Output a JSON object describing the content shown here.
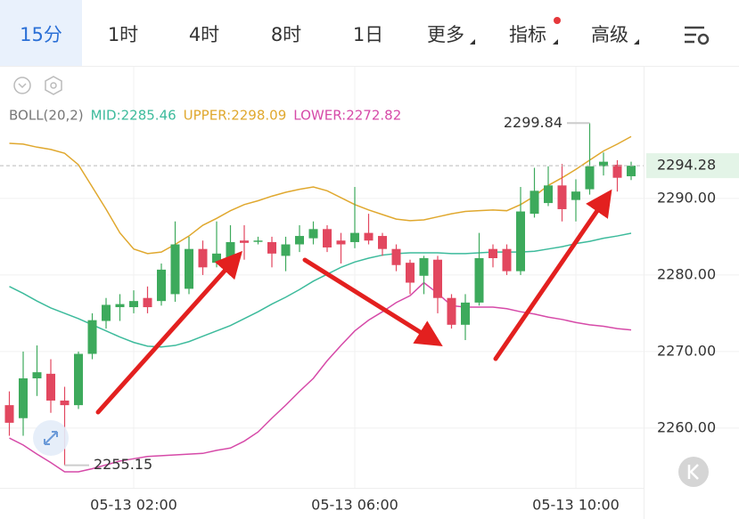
{
  "toolbar": {
    "tabs": [
      "15分",
      "1时",
      "4时",
      "8时",
      "1日",
      "更多",
      "指标",
      "高级"
    ]
  },
  "chart_data": {
    "type": "candlestick",
    "indicator": "BOLL(20,2)",
    "categories": [
      null,
      null,
      null,
      null,
      null,
      null,
      null,
      null,
      null,
      "05-13 02:00",
      null,
      null,
      null,
      null,
      null,
      null,
      null,
      null,
      null,
      null,
      null,
      null,
      null,
      null,
      null,
      "05-13 06:00",
      null,
      null,
      null,
      null,
      null,
      null,
      null,
      null,
      null,
      null,
      null,
      null,
      null,
      null,
      null,
      "05-13 10:00",
      null,
      null,
      null,
      null
    ],
    "open": [
      2263.0,
      2261.3,
      2266.5,
      2267.1,
      2263.6,
      2263.0,
      2269.7,
      2274.0,
      2275.8,
      2275.8,
      2277.0,
      2276.6,
      2277.5,
      2278.2,
      2283.4,
      2281.6,
      2282.0,
      2284.5,
      2284.4,
      2284.3,
      2282.5,
      2284.0,
      2284.8,
      2286.0,
      2284.5,
      2284.3,
      2285.5,
      2285.1,
      2283.4,
      2281.6,
      2279.9,
      2282.0,
      2277.0,
      2273.5,
      2276.4,
      2283.4,
      2283.4,
      2280.5,
      2288.0,
      2289.4,
      2291.7,
      2289.8,
      2291.2,
      2294.2,
      2294.4,
      2292.9
    ],
    "high": [
      2264.8,
      2270.0,
      2270.8,
      2269.0,
      2265.4,
      2270.0,
      2275.0,
      2277.0,
      2277.5,
      2278.0,
      2278.5,
      2281.5,
      2287.0,
      2285.0,
      2284.5,
      2287.0,
      2286.5,
      2286.5,
      2285.0,
      2285.0,
      2285.0,
      2286.5,
      2287.0,
      2286.5,
      2285.5,
      2291.5,
      2288.0,
      2285.5,
      2284.0,
      2282.0,
      2282.5,
      2282.5,
      2277.5,
      2277.5,
      2285.5,
      2284.0,
      2284.0,
      2291.5,
      2294.0,
      2294.2,
      2294.5,
      2292.5,
      2299.84,
      2296.0,
      2295.0,
      2294.8
    ],
    "low": [
      2259.0,
      2259.0,
      2264.2,
      2262.0,
      2255.15,
      2262.5,
      2269.0,
      2273.0,
      2274.0,
      2275.0,
      2275.0,
      2276.0,
      2276.5,
      2277.5,
      2280.0,
      2281.0,
      2281.0,
      2282.0,
      2284.0,
      2281.0,
      2280.5,
      2283.0,
      2284.0,
      2283.0,
      2281.5,
      2283.5,
      2284.0,
      2282.5,
      2280.5,
      2277.5,
      2277.5,
      2275.0,
      2273.0,
      2271.5,
      2276.0,
      2281.0,
      2280.0,
      2280.0,
      2287.5,
      2289.0,
      2287.0,
      2287.0,
      2290.5,
      2293.0,
      2290.9,
      2292.4
    ],
    "close": [
      2260.7,
      2266.5,
      2267.3,
      2263.6,
      2263.0,
      2269.7,
      2274.1,
      2276.1,
      2276.2,
      2276.6,
      2275.8,
      2280.7,
      2284.0,
      2283.4,
      2281.0,
      2282.8,
      2284.3,
      2284.2,
      2284.5,
      2282.8,
      2284.0,
      2285.1,
      2286.0,
      2283.6,
      2284.0,
      2285.5,
      2284.5,
      2283.4,
      2281.3,
      2279.0,
      2282.2,
      2277.0,
      2273.5,
      2276.4,
      2282.2,
      2282.2,
      2280.5,
      2288.3,
      2291.0,
      2291.7,
      2288.6,
      2290.9,
      2294.2,
      2294.8,
      2292.7,
      2294.28
    ],
    "up_color": "#3daa5c",
    "down_color": "#e2475f",
    "series": [
      {
        "name": "MID:2285.46",
        "color": "#3dbb9c",
        "values": [
          2278.5,
          2277.6,
          2276.6,
          2275.7,
          2275.0,
          2274.3,
          2273.5,
          2272.7,
          2271.9,
          2271.2,
          2270.7,
          2270.6,
          2270.8,
          2271.3,
          2272.0,
          2272.7,
          2273.4,
          2274.3,
          2275.2,
          2276.2,
          2277.1,
          2278.1,
          2279.2,
          2280.1,
          2281.0,
          2281.7,
          2282.2,
          2282.6,
          2282.8,
          2282.9,
          2282.9,
          2282.9,
          2282.8,
          2282.8,
          2282.9,
          2283.0,
          2283.0,
          2283.0,
          2283.1,
          2283.4,
          2283.7,
          2284.1,
          2284.4,
          2284.8,
          2285.1,
          2285.46
        ]
      },
      {
        "name": "UPPER:2298.09",
        "color": "#e0a82e",
        "values": [
          2297.2,
          2297.1,
          2296.7,
          2296.4,
          2295.9,
          2294.4,
          2291.5,
          2288.6,
          2285.5,
          2283.4,
          2282.8,
          2283.0,
          2284.0,
          2285.1,
          2286.5,
          2287.4,
          2288.4,
          2289.2,
          2289.7,
          2290.3,
          2290.8,
          2291.2,
          2291.5,
          2291.0,
          2290.1,
          2289.2,
          2288.5,
          2287.9,
          2287.3,
          2287.1,
          2287.2,
          2287.6,
          2288.0,
          2288.3,
          2288.4,
          2288.5,
          2288.4,
          2289.2,
          2290.3,
          2291.7,
          2292.7,
          2293.8,
          2295.0,
          2296.2,
          2297.1,
          2298.09
        ]
      },
      {
        "name": "LOWER:2272.82",
        "color": "#d64aa8",
        "values": [
          2258.7,
          2257.8,
          2256.6,
          2255.5,
          2254.3,
          2254.3,
          2254.7,
          2255.2,
          2255.7,
          2256.0,
          2256.3,
          2256.4,
          2256.5,
          2256.6,
          2256.7,
          2257.1,
          2257.4,
          2258.3,
          2259.5,
          2261.3,
          2263.0,
          2264.8,
          2266.5,
          2268.8,
          2270.8,
          2272.7,
          2274.1,
          2275.2,
          2276.4,
          2277.3,
          2279.0,
          2277.6,
          2276.0,
          2275.8,
          2275.8,
          2275.8,
          2275.6,
          2275.2,
          2274.9,
          2274.5,
          2274.2,
          2273.8,
          2273.5,
          2273.3,
          2273.0,
          2272.82
        ]
      }
    ],
    "ylim": [
      2252.2,
      2307.2
    ],
    "yticks": [
      {
        "value": 2260,
        "label": "2260.00"
      },
      {
        "value": 2270,
        "label": "2270.00"
      },
      {
        "value": 2280,
        "label": "2280.00"
      },
      {
        "value": 2290,
        "label": "2290.00"
      }
    ],
    "grid": true
  }
}
